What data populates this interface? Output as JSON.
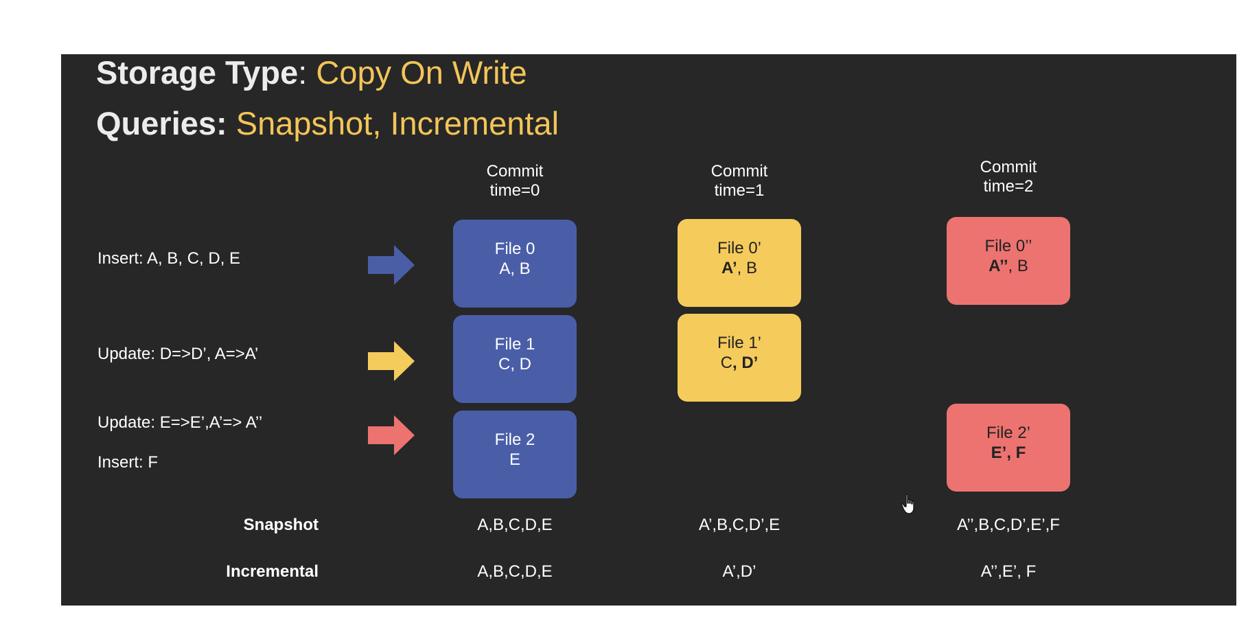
{
  "title": {
    "storage_label": "Storage Type",
    "storage_sep": ": ",
    "storage_value": "Copy On Write",
    "queries_label": "Queries:",
    "queries_value": " Snapshot, Incremental"
  },
  "commits": [
    {
      "line1": "Commit",
      "line2": "time=0"
    },
    {
      "line1": "Commit",
      "line2": "time=1"
    },
    {
      "line1": "Commit",
      "line2": "time=2"
    }
  ],
  "operations": [
    {
      "text": "Insert: A, B, C, D, E",
      "arrow_color": "#4a5ea8"
    },
    {
      "text": "Update: D=>D’, A=>A’",
      "arrow_color": "#f5cb5b"
    },
    {
      "text": "Update: E=>E’,A’=> A’’",
      "arrow_color": "#ec7370"
    },
    {
      "text": "Insert:   F"
    }
  ],
  "colors": {
    "background": "#272727",
    "accent_yellow": "#f3c559",
    "file_blue": "#4a5ea8",
    "file_yellow": "#f5cb5b",
    "file_red": "#ec7370"
  },
  "files": {
    "c0_f0": {
      "name": "File 0",
      "content": "A, B"
    },
    "c0_f1": {
      "name": "File 1",
      "content": "C, D"
    },
    "c0_f2": {
      "name": "File 2",
      "content": "E"
    },
    "c1_f0": {
      "name": "File 0’",
      "content_bold": "A’",
      "content_rest": ", B"
    },
    "c1_f1": {
      "name": "File 1’",
      "content_rest": "C",
      "content_bold": ", D’"
    },
    "c2_f0": {
      "name": "File 0’’",
      "content_bold": "A’’",
      "content_rest": ", B"
    },
    "c2_f2": {
      "name": "File 2’",
      "content_bold": "E’, F"
    }
  },
  "results": {
    "snapshot_label": "Snapshot",
    "incremental_label": "Incremental",
    "snapshot": [
      "A,B,C,D,E",
      "A’,B,C,D’,E",
      "A’’,B,C,D’,E’,F"
    ],
    "incremental": [
      "A,B,C,D,E",
      "A’,D’",
      "A’’,E’, F"
    ]
  }
}
